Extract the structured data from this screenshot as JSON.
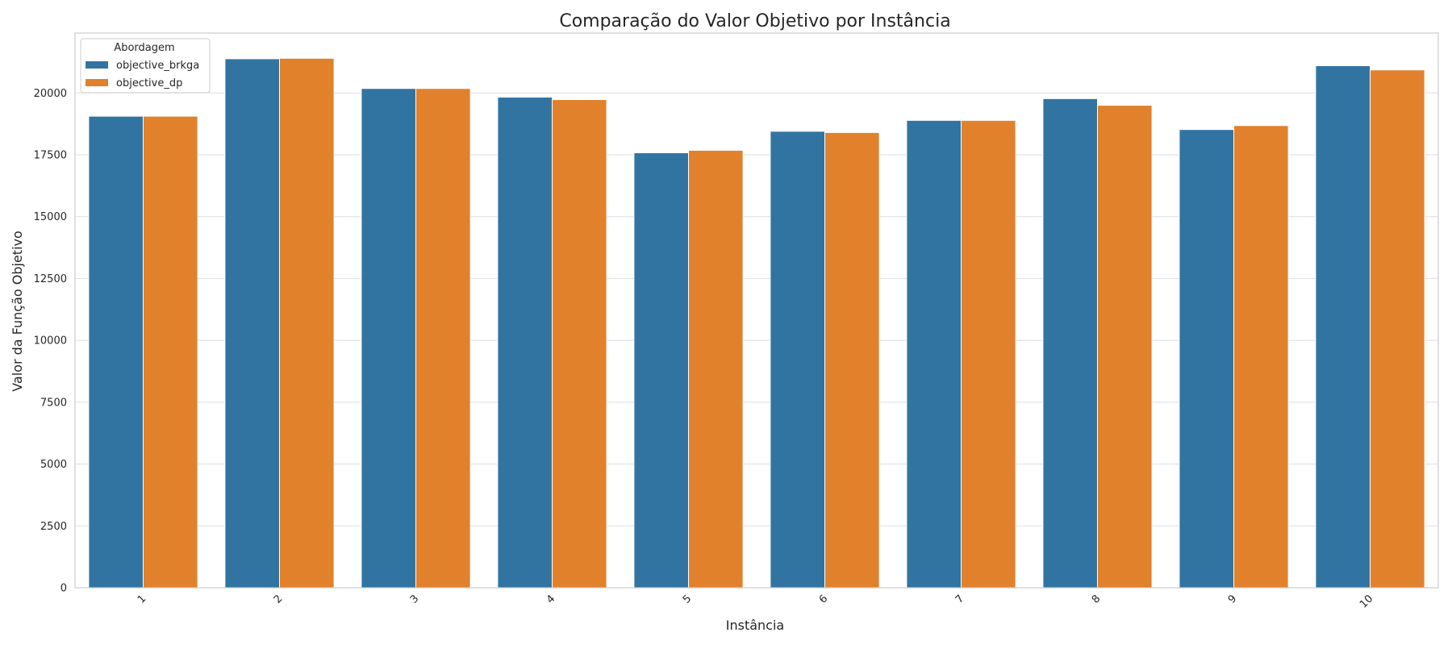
{
  "chart_data": {
    "type": "bar",
    "title": "Comparação do Valor Objetivo por Instância",
    "xlabel": "Instância",
    "ylabel": "Valor da Função Objetivo",
    "categories": [
      "1",
      "2",
      "3",
      "4",
      "5",
      "6",
      "7",
      "8",
      "9",
      "10"
    ],
    "series": [
      {
        "name": "objective_brkga",
        "color": "#3274a1",
        "values": [
          19060,
          21380,
          20180,
          19830,
          17580,
          18450,
          18890,
          19770,
          18520,
          21100
        ]
      },
      {
        "name": "objective_dp",
        "color": "#e1812c",
        "values": [
          19060,
          21400,
          20180,
          19730,
          17680,
          18400,
          18890,
          19500,
          18680,
          20930
        ]
      }
    ],
    "ylim": [
      0,
      22420
    ],
    "yticks": [
      0,
      2500,
      5000,
      7500,
      10000,
      12500,
      15000,
      17500,
      20000
    ],
    "ytick_labels": [
      "0",
      "2500",
      "5000",
      "7500",
      "10000",
      "12500",
      "15000",
      "17500",
      "20000"
    ],
    "grid": "horizontal",
    "legend": {
      "title": "Abordagem",
      "placement": "top-left"
    }
  }
}
